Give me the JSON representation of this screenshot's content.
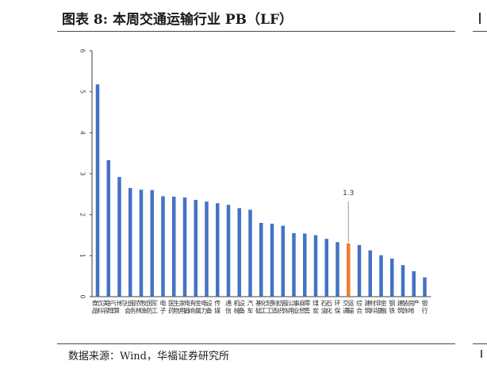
{
  "header": {
    "title": "图表 8:  本周交通运输行业 PB（LF）"
  },
  "footer": {
    "source": "数据来源：Wind，华福证券研究所"
  },
  "colors": {
    "bar": "#4472C4",
    "highlight": "#ED7D31",
    "axis": "#404040"
  },
  "chart_data": {
    "type": "bar",
    "title": "",
    "xlabel": "",
    "ylabel": "",
    "ylim": [
      0,
      6
    ],
    "yticks": [
      0,
      1,
      2,
      3,
      4,
      5,
      6
    ],
    "categories": [
      "食品饮料",
      "美容护理",
      "计算机",
      "社会服务",
      "农林牧渔",
      "国防军工",
      "电子",
      "医药生物",
      "家用电器",
      "有色金属",
      "电力设备",
      "传媒",
      "通信",
      "机械设备",
      "汽车",
      "基础化工",
      "轻工制造",
      "纺织服饰",
      "公用事业",
      "商贸零售",
      "煤炭",
      "石油石化",
      "环保",
      "交通运输",
      "综合",
      "建筑材料",
      "非银金融",
      "钢铁",
      "建筑装饰",
      "房地产",
      "银行"
    ],
    "values": [
      5.18,
      3.33,
      2.92,
      2.65,
      2.61,
      2.6,
      2.45,
      2.44,
      2.42,
      2.36,
      2.32,
      2.28,
      2.24,
      2.16,
      2.12,
      1.8,
      1.78,
      1.73,
      1.55,
      1.54,
      1.5,
      1.41,
      1.33,
      1.3,
      1.26,
      1.13,
      1.01,
      0.93,
      0.77,
      0.62,
      0.47
    ],
    "highlight": {
      "category": "交通运输",
      "label": "1.3"
    }
  }
}
